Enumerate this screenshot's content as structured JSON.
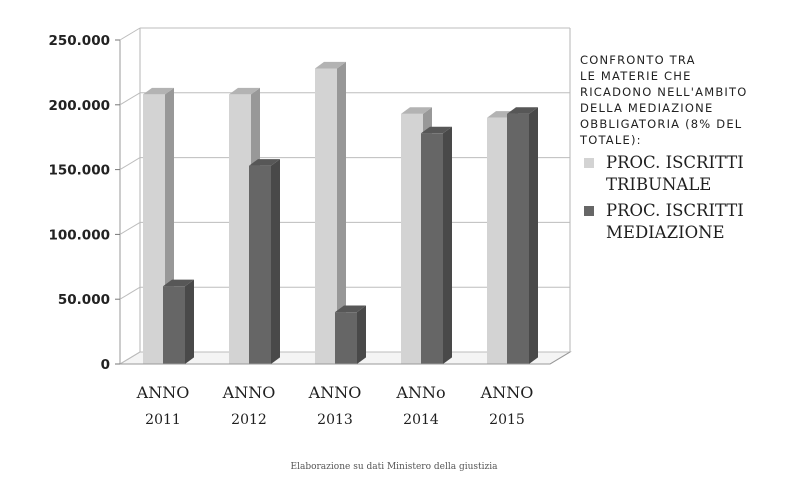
{
  "chart_data": {
    "type": "bar",
    "title": "CONFRONTO TRA\nLE MATERIE CHE\nRICADONO NELL'AMBITO\nDELLA MEDIAZIONE\nOBBLIGATORIA (8% DEL\nTOTALE):",
    "categories": [
      {
        "line1": "ANNO",
        "line2": "2011"
      },
      {
        "line1": "ANNO",
        "line2": "2012"
      },
      {
        "line1": "ANNO",
        "line2": "2013"
      },
      {
        "line1": "ANNo",
        "line2": "2014"
      },
      {
        "line1": "ANNO",
        "line2": "2015"
      }
    ],
    "series": [
      {
        "name": "PROC. ISCRITTI TRIBUNALE",
        "color": "#d3d3d3",
        "values": [
          208000,
          208000,
          228000,
          193000,
          190000
        ]
      },
      {
        "name": "PROC. ISCRITTI MEDIAZIONE",
        "color": "#666666",
        "values": [
          60000,
          153000,
          40000,
          178000,
          193000
        ]
      }
    ],
    "ylim": [
      0,
      250000
    ],
    "yticks": [
      0,
      50000,
      100000,
      150000,
      200000,
      250000
    ],
    "ytick_labels": [
      "0",
      "50.000",
      "100.000",
      "150.000",
      "200.000",
      "250.000"
    ],
    "grid": true,
    "legend_position": "right",
    "xlabel": "",
    "ylabel": ""
  },
  "footer": "Elaborazione su dati Ministero della giustizia"
}
